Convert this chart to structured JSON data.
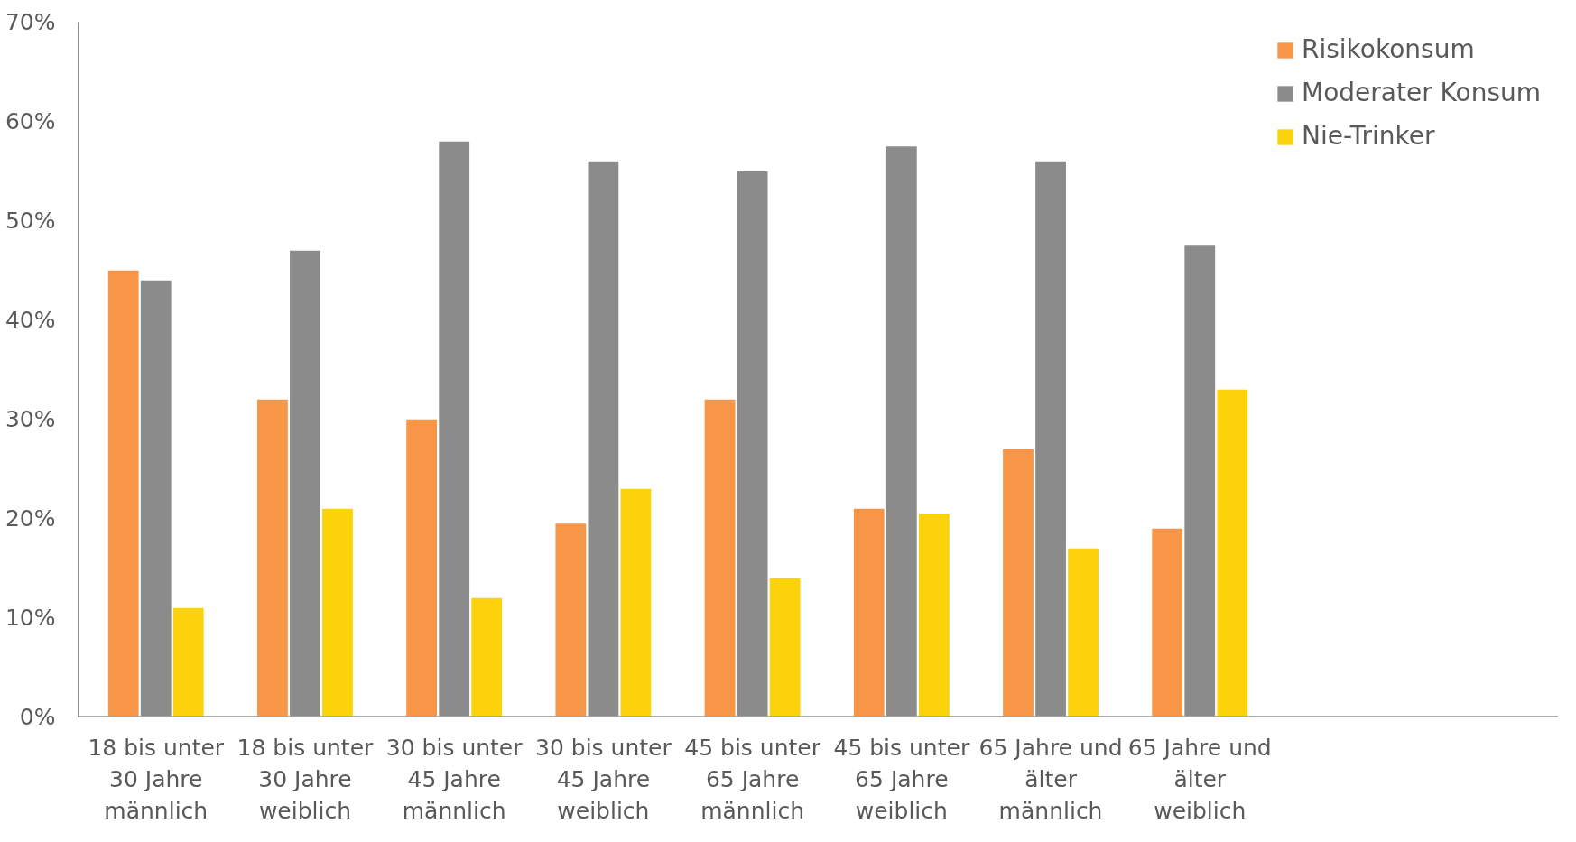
{
  "chart_data": {
    "type": "bar",
    "categories": [
      "18 bis unter 30 Jahre männlich",
      "18 bis unter 30 Jahre weiblich",
      "30 bis unter 45 Jahre männlich",
      "30 bis unter 45 Jahre weiblich",
      "45 bis unter 65 Jahre männlich",
      "45 bis unter 65 Jahre weiblich",
      "65 Jahre und älter männlich",
      "65 Jahre und älter weiblich"
    ],
    "series": [
      {
        "name": "Risikokonsum",
        "color": "#f79646",
        "values": [
          45,
          32,
          30,
          19.5,
          32,
          21,
          27,
          19
        ]
      },
      {
        "name": "Moderater Konsum",
        "color": "#8c8b8c",
        "values": [
          44,
          47,
          58,
          56,
          55,
          57.5,
          56,
          47.5
        ]
      },
      {
        "name": "Nie-Trinker",
        "color": "#fcd20a",
        "values": [
          11,
          21,
          12,
          23,
          14,
          20.5,
          17,
          33
        ]
      }
    ],
    "ylim": [
      0,
      70
    ],
    "yticks": [
      {
        "value": 0,
        "label": "0%"
      },
      {
        "value": 10,
        "label": "10%"
      },
      {
        "value": 20,
        "label": "20%"
      },
      {
        "value": 30,
        "label": "30%"
      },
      {
        "value": 40,
        "label": "40%"
      },
      {
        "value": 50,
        "label": "50%"
      },
      {
        "value": 60,
        "label": "60%"
      },
      {
        "value": 70,
        "label": "70%"
      }
    ],
    "grid": false,
    "legend": "top right"
  }
}
